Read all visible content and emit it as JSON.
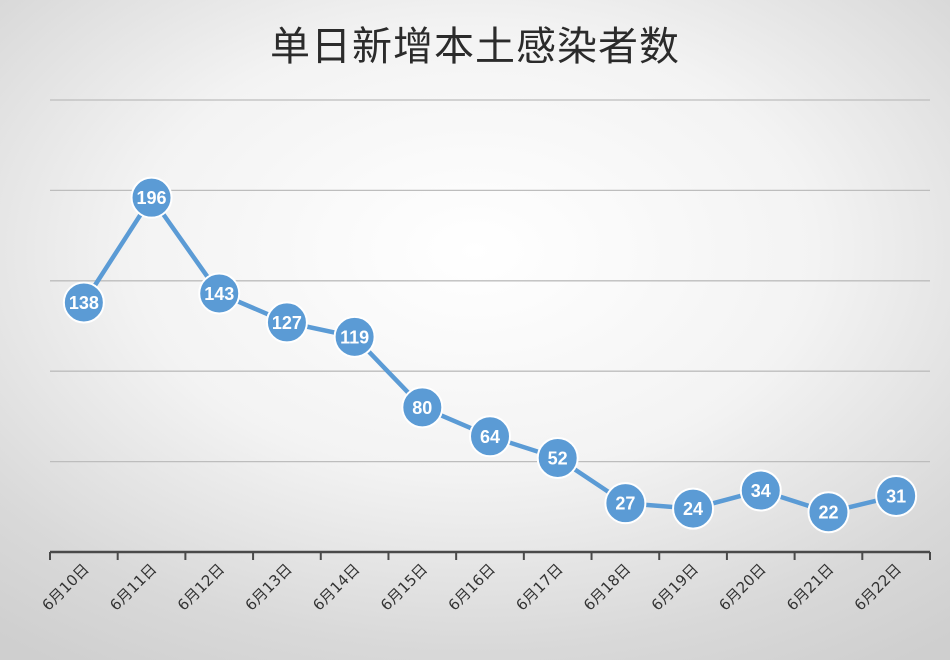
{
  "chart_data": {
    "type": "line",
    "title": "单日新增本土感染者数",
    "categories": [
      "6月10日",
      "6月11日",
      "6月12日",
      "6月13日",
      "6月14日",
      "6月15日",
      "6月16日",
      "6月17日",
      "6月18日",
      "6月19日",
      "6月20日",
      "6月21日",
      "6月22日"
    ],
    "values": [
      138,
      196,
      143,
      127,
      119,
      80,
      64,
      52,
      27,
      24,
      34,
      22,
      31
    ],
    "ylim": [
      0,
      250
    ],
    "y_gridlines": [
      50,
      100,
      150,
      200,
      250
    ],
    "y_tick_labels_shown": false,
    "x_tick_rotation": -45,
    "grid": true,
    "data_labels": true,
    "colors": {
      "line": "#5b9bd5",
      "marker": "#5b9bd5",
      "marker_label": "#ffffff",
      "gridline": "#bdbdbd",
      "axis": "#4a4a4a"
    }
  }
}
